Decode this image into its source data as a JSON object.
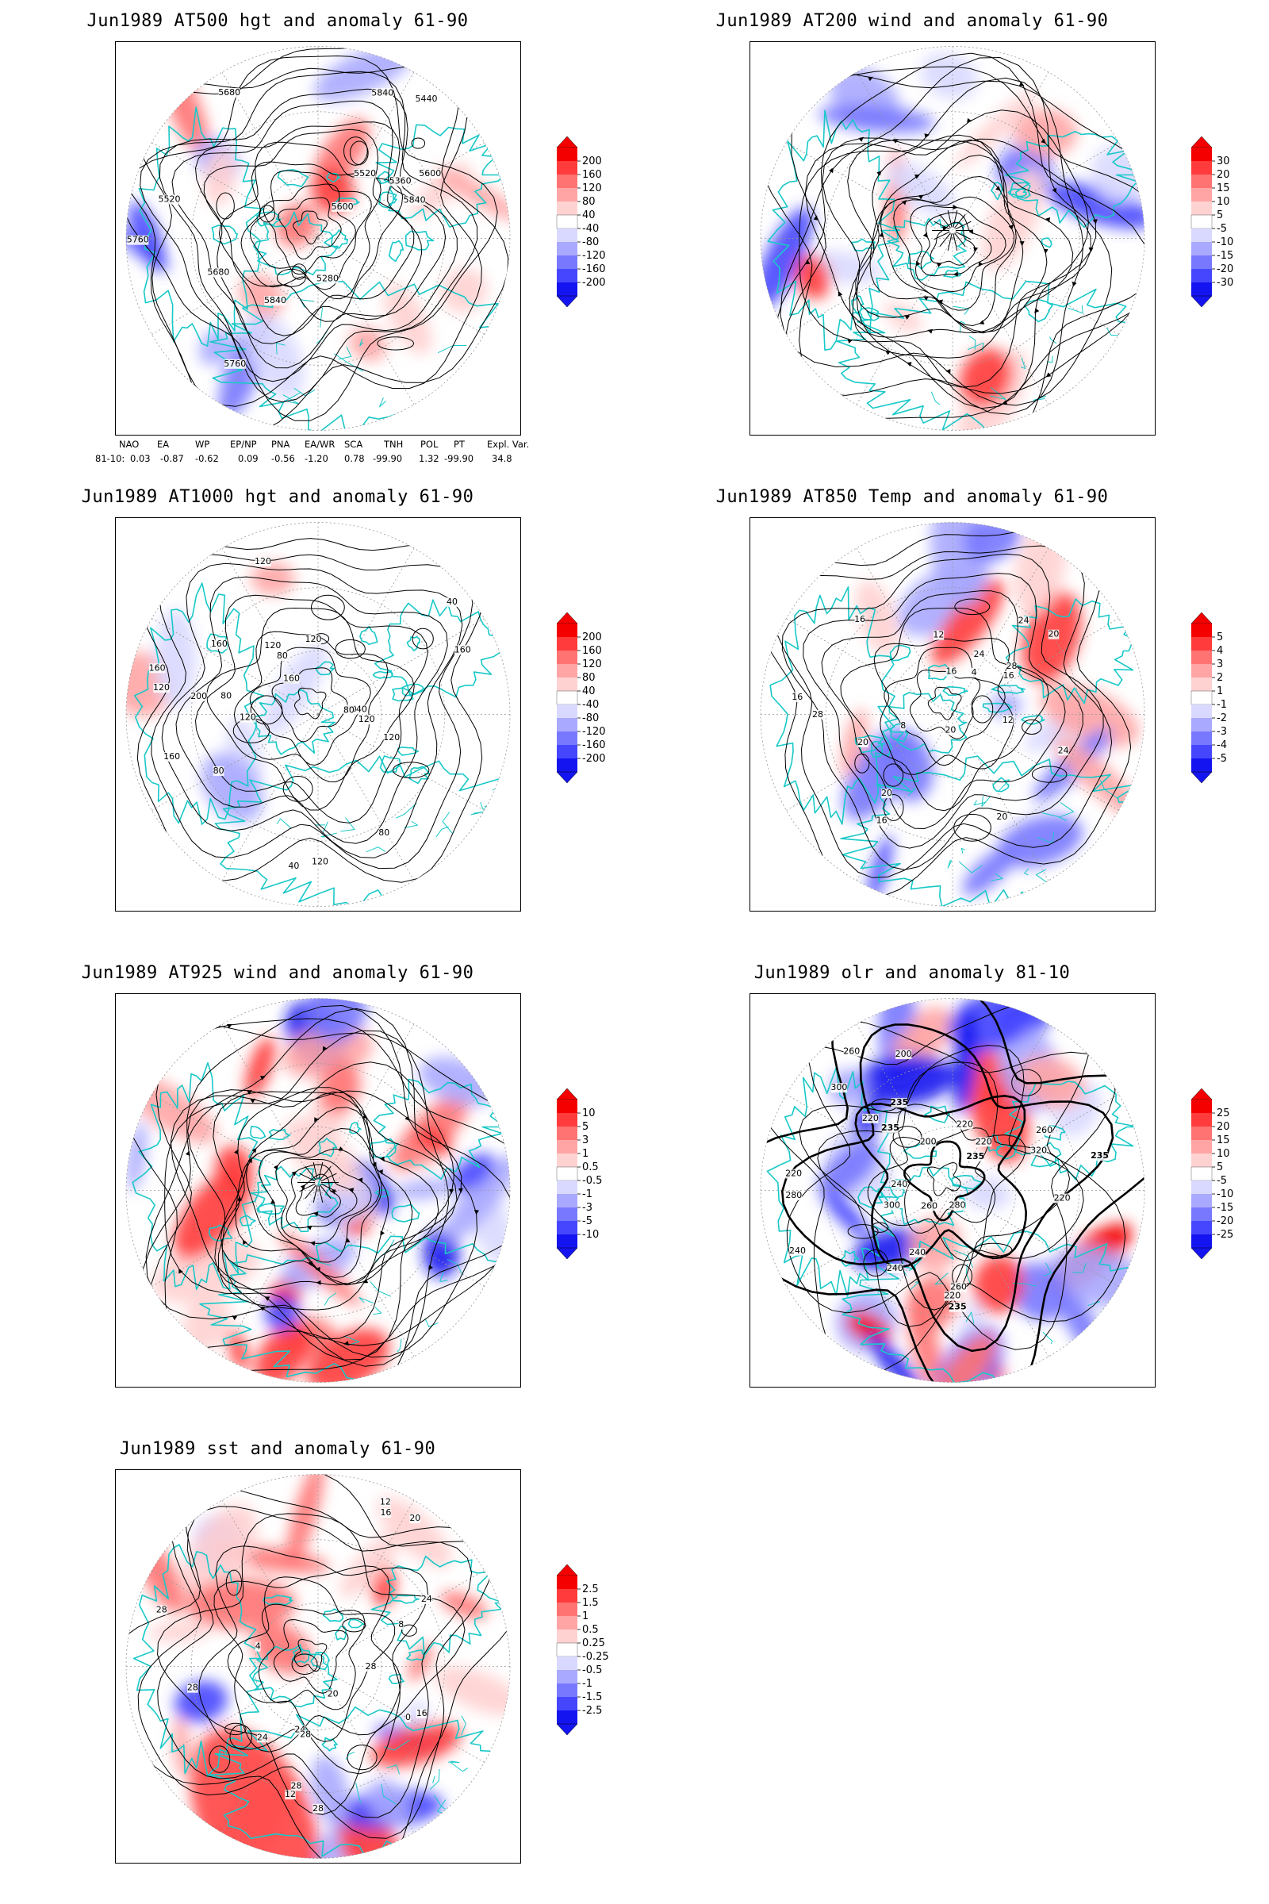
{
  "panels": [
    {
      "id": "p1",
      "title": "Jun1989 AT500 hgt and anomaly 61-90",
      "type": "hgt",
      "fill": "mixed",
      "labels": [
        "5520",
        "5600",
        "5680",
        "5280",
        "5360",
        "5440",
        "5520",
        "5600",
        "5680",
        "5760",
        "5840",
        "5760",
        "5840",
        "5840"
      ],
      "colorbar": [
        "200",
        "160",
        "120",
        "80",
        "40",
        "-40",
        "-80",
        "-120",
        "-160",
        "-200"
      ]
    },
    {
      "id": "p2",
      "title": "Jun1989 AT200 wind and anomaly 61-90",
      "type": "wind",
      "fill": "mixed",
      "labels": [],
      "colorbar": [
        "30",
        "20",
        "15",
        "10",
        "5",
        "-5",
        "-10",
        "-15",
        "-20",
        "-30"
      ]
    },
    {
      "id": "p3",
      "title": "Jun1989 AT1000 hgt and anomaly 61-90",
      "type": "hgt",
      "fill": "light",
      "labels": [
        "120",
        "160",
        "160",
        "200",
        "120",
        "160",
        "80",
        "120",
        "40",
        "80",
        "40",
        "120",
        "80",
        "40",
        "120",
        "160",
        "80",
        "120",
        "160",
        "80",
        "120",
        "120",
        "80"
      ],
      "colorbar": [
        "200",
        "160",
        "120",
        "80",
        "40",
        "-40",
        "-80",
        "-120",
        "-160",
        "-200"
      ]
    },
    {
      "id": "p4",
      "title": "Jun1989 AT850 Temp and anomaly 61-90",
      "type": "temp",
      "fill": "mixed",
      "labels": [
        "16",
        "12",
        "16",
        "20",
        "24",
        "4",
        "8",
        "12",
        "16",
        "20",
        "24",
        "28",
        "20",
        "16",
        "16",
        "20",
        "24",
        "20",
        "28"
      ],
      "colorbar": [
        "5",
        "4",
        "3",
        "2",
        "1",
        "-1",
        "-2",
        "-3",
        "-4",
        "-5"
      ]
    },
    {
      "id": "p5",
      "title": "Jun1989 AT925 wind and anomaly 61-90",
      "type": "wind",
      "fill": "strong",
      "labels": [],
      "colorbar": [
        "10",
        "5",
        "3",
        "1",
        "0.5",
        "-0.5",
        "-1",
        "-3",
        "-5",
        "-10"
      ]
    },
    {
      "id": "p6",
      "title": "Jun1989 olr and anomaly 81-10",
      "type": "olr",
      "fill": "strong",
      "labels": [
        "260",
        "235",
        "240",
        "235",
        "220",
        "280",
        "260",
        "235",
        "200",
        "220",
        "240",
        "220",
        "260",
        "235",
        "220",
        "300",
        "280",
        "240",
        "220",
        "260",
        "300",
        "320",
        "235",
        "220",
        "200",
        "240"
      ],
      "colorbar": [
        "25",
        "20",
        "15",
        "10",
        "5",
        "-5",
        "-10",
        "-15",
        "-20",
        "-25"
      ]
    },
    {
      "id": "p7",
      "title": "Jun1989 sst and anomaly 61-90",
      "type": "sst",
      "fill": "sst",
      "labels": [
        "28",
        "28",
        "24",
        "24",
        "20",
        "16",
        "12",
        "8",
        "4",
        "0",
        "12",
        "16",
        "20",
        "24",
        "28",
        "28",
        "28",
        "28"
      ],
      "colorbar": [
        "2.5",
        "1.5",
        "1",
        "0.5",
        "0.25",
        "-0.25",
        "-0.5",
        "-1",
        "-1.5",
        "-2.5"
      ]
    }
  ],
  "indices": {
    "headers": [
      "NAO",
      "EA",
      "WP",
      "EP/NP",
      "PNA",
      "EA/WR",
      "SCA",
      "TNH",
      "POL",
      "PT",
      "Expl. Var."
    ],
    "row_label": "81-10:",
    "values": [
      "0.03",
      "-0.87",
      "-0.62",
      "0.09",
      "-0.56",
      "-1.20",
      "0.78",
      "-99.90",
      "1.32",
      "-99.90",
      "34.8"
    ]
  },
  "colors": {
    "reds": [
      "#f40000",
      "#ff3b3b",
      "#ff7373",
      "#ffa5a5",
      "#ffd2d2"
    ],
    "white": "#ffffff",
    "blues": [
      "#d9d9ff",
      "#a9a9ff",
      "#7878ff",
      "#4646ff",
      "#1414f0"
    ],
    "coast": "#19c8c8",
    "contour": "#000000",
    "grid": "#999999"
  }
}
